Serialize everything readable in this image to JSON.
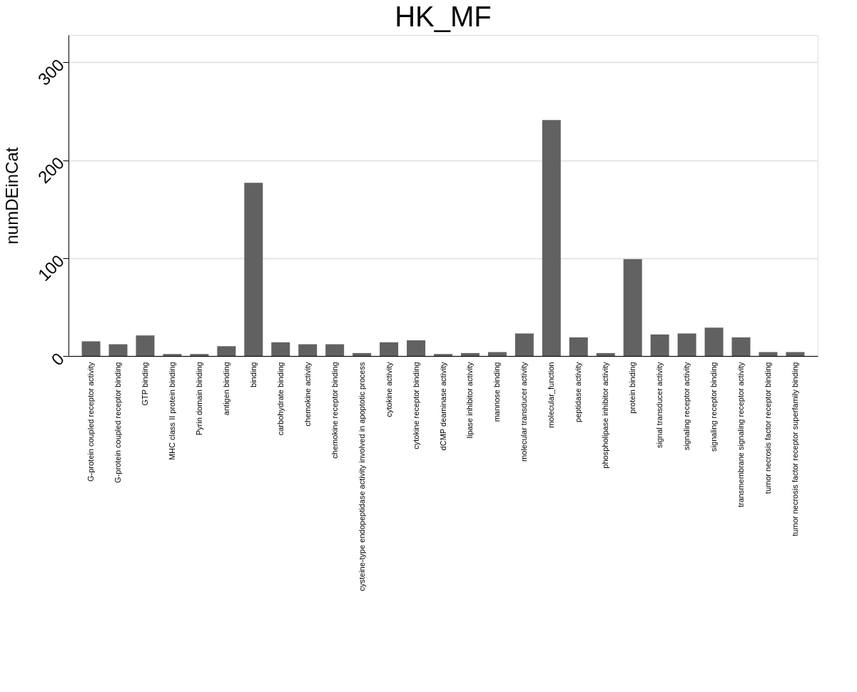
{
  "chart_data": {
    "type": "bar",
    "title": "HK_MF",
    "ylabel": "numDEinCat",
    "categories": [
      "G-protein coupled receptor activity",
      "G-protein coupled receptor binding",
      "GTP binding",
      "MHC class II protein binding",
      "Pyrin domain binding",
      "antigen binding",
      "binding",
      "carbohydrate binding",
      "chemokine activity",
      "chemokine receptor binding",
      "cysteine-type endopeptidase activity involved in apoptotic process",
      "cytokine activity",
      "cytokine receptor binding",
      "dCMP deaminase activity",
      "lipase inhibitor activity",
      "mannose binding",
      "molecular transducer activity",
      "molecular_function",
      "peptidase activity",
      "phospholipase inhibitor activity",
      "protein binding",
      "signal transducer activity",
      "signaling receptor activity",
      "signaling receptor binding",
      "transmembrane signaling receptor activity",
      "tumor necrosis factor receptor binding",
      "tumor necrosis factor receptor superfamily binding"
    ],
    "values": [
      15,
      12,
      21,
      2,
      2,
      10,
      177,
      14,
      12,
      12,
      3,
      14,
      16,
      2,
      3,
      4,
      23,
      241,
      19,
      3,
      99,
      22,
      23,
      29,
      19,
      4,
      4
    ],
    "color": "#616161",
    "ylim": [
      0,
      328
    ],
    "yticks": [
      0,
      100,
      200,
      300
    ],
    "grid": "y"
  }
}
